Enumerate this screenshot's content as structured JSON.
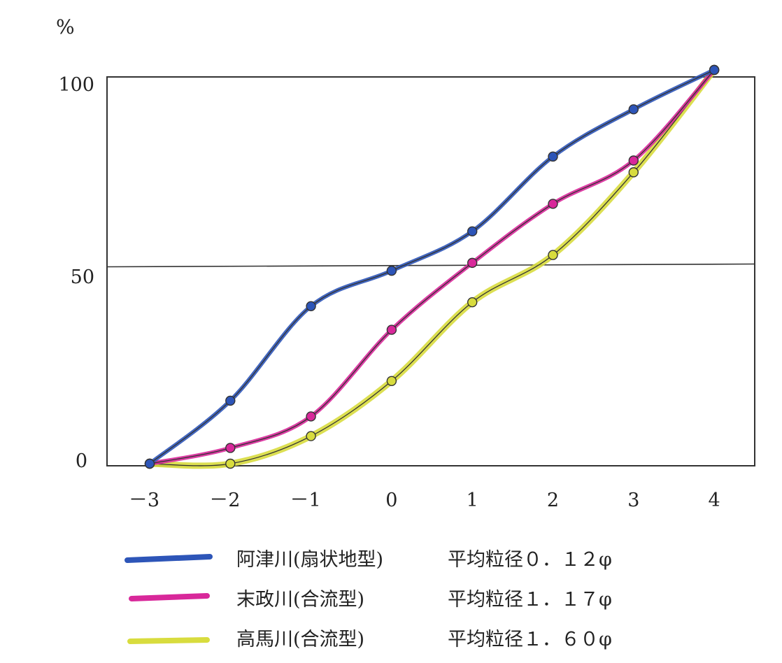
{
  "chart_data": {
    "type": "line",
    "title": "",
    "xlabel": "",
    "ylabel": "%",
    "x": [
      -3,
      -2,
      -1,
      0,
      1,
      2,
      3,
      4
    ],
    "xticks": [
      "－3",
      "－2",
      "－1",
      "0",
      "1",
      "2",
      "3",
      "4"
    ],
    "yticks": [
      "100",
      "50",
      "0"
    ],
    "xlim": [
      -3.5,
      4.5
    ],
    "ylim": [
      0,
      100
    ],
    "grid": "horizontal at 50 only",
    "legend_position": "bottom",
    "series": [
      {
        "name": "阿津川(扇状地型)",
        "note": "平均粒径０．１２φ",
        "color": "#2d55b8",
        "values": [
          0,
          16,
          40,
          49,
          59,
          78,
          90,
          100
        ]
      },
      {
        "name": "末政川(合流型)",
        "note": "平均粒径１．１７φ",
        "color": "#d8289a",
        "values": [
          0,
          4,
          12,
          34,
          51,
          66,
          77,
          100
        ]
      },
      {
        "name": "高馬川(合流型)",
        "note": "平均粒径１．６０φ",
        "color": "#d8dc3e",
        "values": [
          0,
          0,
          7,
          21,
          41,
          53,
          74,
          100
        ]
      }
    ]
  }
}
